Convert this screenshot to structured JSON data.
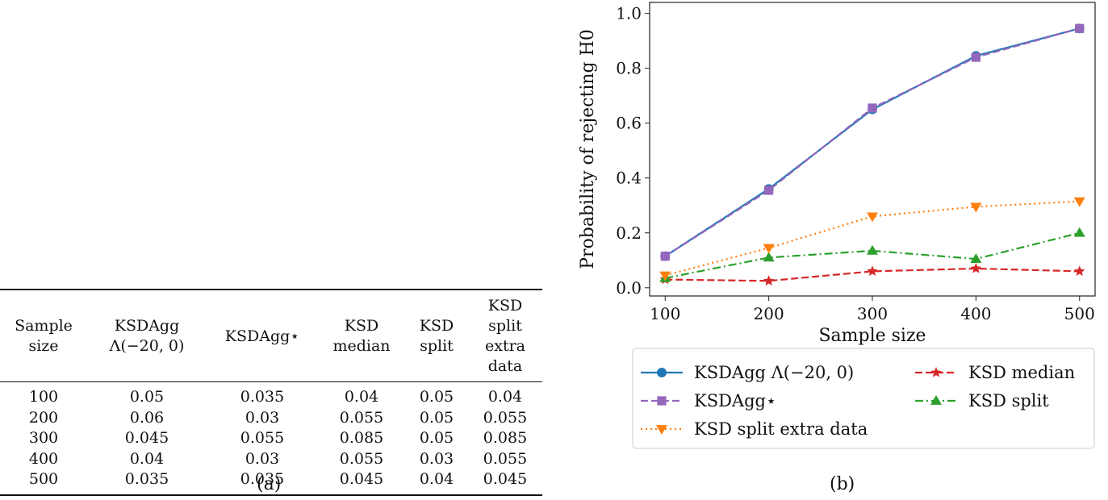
{
  "table": {
    "headers": [
      [
        "Sample",
        "size"
      ],
      [
        "KSDAgg",
        "Λ(−20, 0)"
      ],
      [
        "KSDAgg⋆"
      ],
      [
        "KSD",
        "median"
      ],
      [
        "KSD",
        "split"
      ],
      [
        "KSD split",
        "extra data"
      ]
    ],
    "rows": [
      [
        "100",
        "0.05",
        "0.035",
        "0.04",
        "0.05",
        "0.04"
      ],
      [
        "200",
        "0.06",
        "0.03",
        "0.055",
        "0.05",
        "0.055"
      ],
      [
        "300",
        "0.045",
        "0.055",
        "0.085",
        "0.05",
        "0.085"
      ],
      [
        "400",
        "0.04",
        "0.03",
        "0.055",
        "0.03",
        "0.055"
      ],
      [
        "500",
        "0.035",
        "0.035",
        "0.045",
        "0.04",
        "0.045"
      ]
    ],
    "caption": "(a)"
  },
  "chart_data": {
    "type": "line",
    "x": [
      100,
      200,
      300,
      400,
      500
    ],
    "series": [
      {
        "name": "KSDAgg Λ(−20, 0)",
        "color": "#1f77b4",
        "style": "solid",
        "marker": "circle",
        "values": [
          0.115,
          0.36,
          0.65,
          0.845,
          0.945
        ]
      },
      {
        "name": "KSDAgg⋆",
        "color": "#9467bd",
        "style": "dashed",
        "marker": "square",
        "values": [
          0.115,
          0.355,
          0.655,
          0.84,
          0.945
        ]
      },
      {
        "name": "KSD split extra data",
        "color": "#ff7f0e",
        "style": "dotted",
        "marker": "triangle-down",
        "values": [
          0.045,
          0.145,
          0.26,
          0.295,
          0.315
        ]
      },
      {
        "name": "KSD median",
        "color": "#d62728",
        "style": "dashed",
        "marker": "star",
        "values": [
          0.03,
          0.025,
          0.06,
          0.07,
          0.06
        ]
      },
      {
        "name": "KSD split",
        "color": "#2ca02c",
        "style": "dashdot",
        "marker": "triangle-up",
        "values": [
          0.035,
          0.11,
          0.135,
          0.105,
          0.2
        ]
      }
    ],
    "xlabel": "Sample size",
    "ylabel": "Probability of rejecting H0",
    "xticks": [
      "100",
      "200",
      "300",
      "400",
      "500"
    ],
    "yticks": [
      "0.0",
      "0.2",
      "0.4",
      "0.6",
      "0.8",
      "1.0"
    ],
    "xlim": [
      85,
      515
    ],
    "ylim": [
      -0.03,
      1.04
    ],
    "legend_position": "below",
    "caption": "(b)"
  }
}
